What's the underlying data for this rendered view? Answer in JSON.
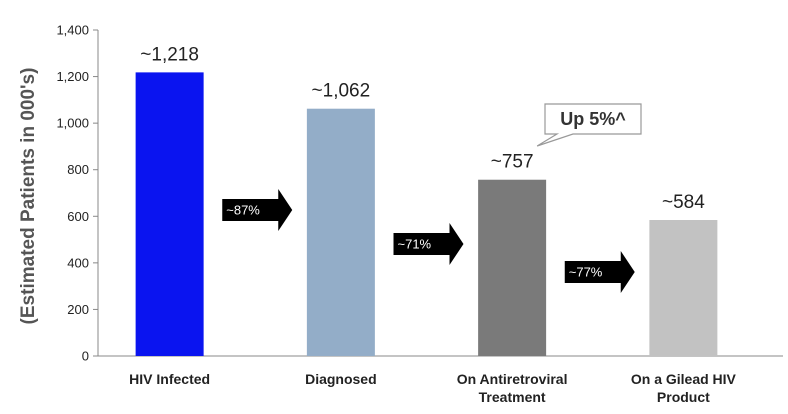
{
  "chart_data": {
    "type": "bar",
    "title": "",
    "xlabel": "",
    "ylabel": "(Estimated Patients in 000's)",
    "ylim": [
      0,
      1400
    ],
    "yticks": [
      0,
      200,
      400,
      600,
      800,
      1000,
      1200,
      1400
    ],
    "ytick_labels": [
      "0",
      "200",
      "400",
      "600",
      "800",
      "1,000",
      "1,200",
      "1,400"
    ],
    "grid": false,
    "categories": [
      [
        "HIV Infected"
      ],
      [
        "Diagnosed"
      ],
      [
        "On Antiretroviral",
        "Treatment"
      ],
      [
        "On a Gilead HIV",
        "Product"
      ]
    ],
    "values": [
      1218,
      1062,
      757,
      584
    ],
    "value_labels": [
      "~1,218",
      "~1,062",
      "~757",
      "~584"
    ],
    "colors": [
      "#0a14f0",
      "#93adc8",
      "#7a7a7a",
      "#c2c2c2"
    ],
    "conversion_arrows": [
      {
        "label": "~87%",
        "from": 0,
        "to": 1
      },
      {
        "label": "~71%",
        "from": 1,
        "to": 2
      },
      {
        "label": "~77%",
        "from": 2,
        "to": 3
      }
    ],
    "callout": {
      "text": "Up 5%^",
      "target": 2
    }
  }
}
